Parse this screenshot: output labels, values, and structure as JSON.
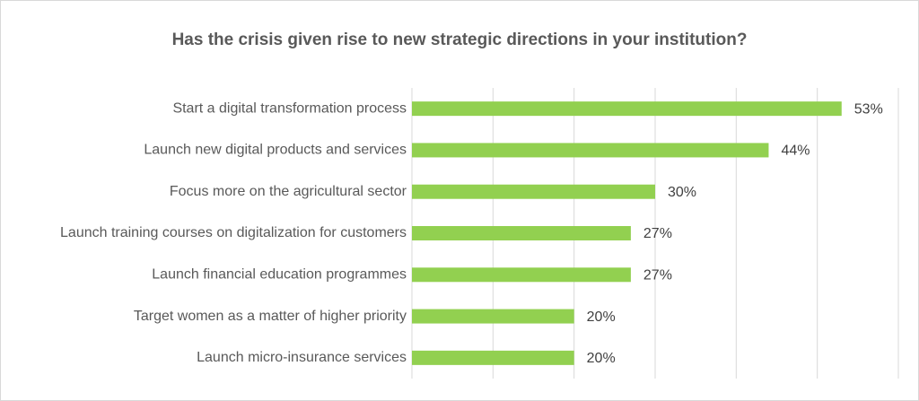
{
  "chart_data": {
    "type": "bar",
    "orientation": "horizontal",
    "title": "Has the crisis given rise to new strategic directions in your institution?",
    "categories": [
      "Start a digital transformation process",
      "Launch new digital products and services",
      "Focus more on the agricultural sector",
      "Launch training courses on digitalization for customers",
      "Launch financial education programmes",
      "Target women as a matter of higher priority",
      "Launch micro-insurance services"
    ],
    "values": [
      53,
      44,
      30,
      27,
      27,
      20,
      20
    ],
    "value_labels": [
      "53%",
      "44%",
      "30%",
      "27%",
      "27%",
      "20%",
      "20%"
    ],
    "xlim": [
      0,
      60
    ],
    "grid": true,
    "legend": "none",
    "colors": {
      "bar": "#92d050",
      "grid": "#d9d9d9",
      "text": "#595959"
    }
  }
}
